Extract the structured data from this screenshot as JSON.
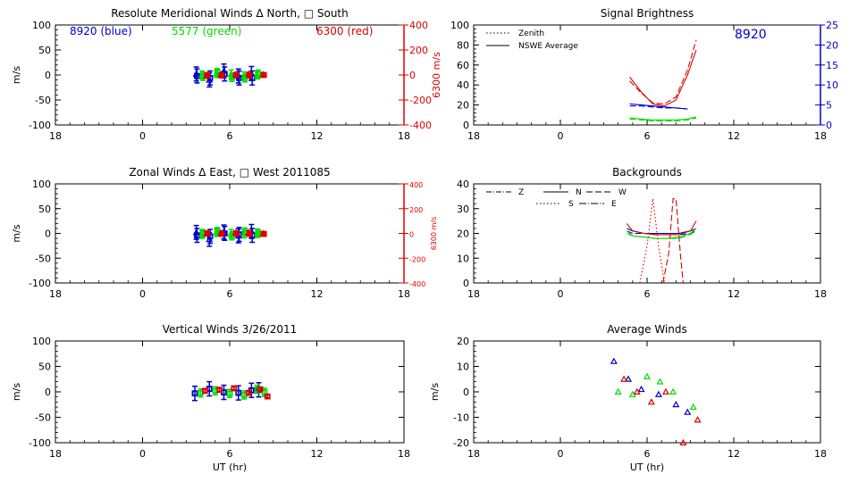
{
  "colors": {
    "blue": "#0000cc",
    "green": "#00dd00",
    "red": "#dd0000",
    "black": "#000000"
  },
  "chart_data": [
    {
      "id": "merid",
      "type": "scatter",
      "title": "Resolute Meridional Winds Δ North, □ South",
      "xlabel": "",
      "ylabel": "m/s",
      "right_axis_label": "6300 m/s",
      "xlim": [
        18,
        42
      ],
      "ylim": [
        -100,
        100
      ],
      "right_ylim": [
        -400,
        400
      ],
      "xticks": [
        18,
        24,
        30,
        36,
        42
      ],
      "xtick_labels": [
        "18",
        "0",
        "6",
        "12",
        "18"
      ],
      "yticks": [
        -100,
        -50,
        0,
        50,
        100
      ],
      "right_yticks": [
        -400,
        -200,
        0,
        200,
        400
      ],
      "annotations": [
        "8920 (blue)",
        "5577 (green)",
        "6300 (red)"
      ],
      "series": [
        {
          "color": "blue",
          "marker": "triangle",
          "error_bars": true,
          "x": [
            27.7,
            28.6,
            29.6,
            30.6,
            31.5
          ],
          "y": [
            2,
            -10,
            8,
            -2,
            3
          ]
        },
        {
          "color": "blue",
          "marker": "square",
          "error_bars": true,
          "x": [
            27.75,
            28.65,
            29.65,
            30.65,
            31.55
          ],
          "y": [
            -2,
            -6,
            2,
            -6,
            -6
          ]
        },
        {
          "color": "green",
          "marker": "triangle",
          "error_bars": true,
          "x": [
            28.1,
            29.1,
            30.1,
            31.0,
            31.9
          ],
          "y": [
            0,
            3,
            2,
            -2,
            0
          ]
        },
        {
          "color": "green",
          "marker": "square",
          "error_bars": true,
          "x": [
            28.15,
            29.15,
            30.15,
            31.05,
            31.95
          ],
          "y": [
            -3,
            5,
            -5,
            -6,
            2
          ]
        },
        {
          "color": "red",
          "marker": "triangle",
          "error_bars": true,
          "x": [
            28.4,
            29.4,
            30.4,
            31.3,
            32.3
          ],
          "y": [
            -2,
            1,
            1,
            2,
            1
          ]
        },
        {
          "color": "red",
          "marker": "square",
          "error_bars": true,
          "x": [
            28.45,
            29.45,
            30.45,
            31.35,
            32.35
          ],
          "y": [
            0,
            -1,
            0,
            -1,
            0
          ]
        }
      ]
    },
    {
      "id": "zonal",
      "type": "scatter",
      "title": "Zonal Winds Δ East, □ West 2011085",
      "xlabel": "",
      "ylabel": "m/s",
      "right_axis_label": "6300 m/s",
      "xlim": [
        18,
        42
      ],
      "ylim": [
        -100,
        100
      ],
      "right_ylim": [
        -400,
        400
      ],
      "xticks": [
        18,
        24,
        30,
        36,
        42
      ],
      "xtick_labels": [
        "18",
        "0",
        "6",
        "12",
        "18"
      ],
      "yticks": [
        -100,
        -50,
        0,
        50,
        100
      ],
      "right_yticks": [
        -400,
        -200,
        0,
        200,
        400
      ],
      "series": [
        {
          "color": "blue",
          "marker": "triangle",
          "error_bars": true,
          "x": [
            27.7,
            28.6,
            29.6,
            30.6,
            31.5
          ],
          "y": [
            2,
            -12,
            3,
            -5,
            4
          ]
        },
        {
          "color": "blue",
          "marker": "square",
          "error_bars": true,
          "x": [
            27.75,
            28.65,
            29.65,
            30.65,
            31.55
          ],
          "y": [
            -4,
            -6,
            0,
            -2,
            -4
          ]
        },
        {
          "color": "green",
          "marker": "triangle",
          "error_bars": true,
          "x": [
            28.1,
            29.1,
            30.1,
            31.0,
            31.9
          ],
          "y": [
            -2,
            2,
            0,
            -1,
            1
          ]
        },
        {
          "color": "green",
          "marker": "square",
          "error_bars": true,
          "x": [
            28.15,
            29.15,
            30.15,
            31.05,
            31.95
          ],
          "y": [
            0,
            4,
            -5,
            3,
            0
          ]
        },
        {
          "color": "red",
          "marker": "triangle",
          "error_bars": true,
          "x": [
            28.4,
            29.4,
            30.4,
            31.3,
            32.3
          ],
          "y": [
            0,
            1,
            1,
            2,
            0
          ]
        },
        {
          "color": "red",
          "marker": "square",
          "error_bars": true,
          "x": [
            28.45,
            29.45,
            30.45,
            31.35,
            32.35
          ],
          "y": [
            0,
            -1,
            0,
            -1,
            -1
          ]
        }
      ]
    },
    {
      "id": "vert",
      "type": "scatter",
      "title": "Vertical Winds 3/26/2011",
      "xlabel": "UT (hr)",
      "ylabel": "m/s",
      "xlim": [
        18,
        42
      ],
      "ylim": [
        -100,
        100
      ],
      "xticks": [
        18,
        24,
        30,
        36,
        42
      ],
      "xtick_labels": [
        "18",
        "0",
        "6",
        "12",
        "18"
      ],
      "yticks": [
        -100,
        -50,
        0,
        50,
        100
      ],
      "series": [
        {
          "color": "blue",
          "marker": "square",
          "error_bars": true,
          "x": [
            27.6,
            28.6,
            29.6,
            30.6,
            31.5,
            32.0
          ],
          "y": [
            -3,
            6,
            -1,
            -2,
            3,
            4
          ]
        },
        {
          "color": "green",
          "marker": "square",
          "error_bars": true,
          "x": [
            28.0,
            29.0,
            30.0,
            31.0,
            31.9,
            32.4
          ],
          "y": [
            -2,
            2,
            -3,
            -6,
            5,
            -1
          ]
        },
        {
          "color": "red",
          "marker": "square",
          "error_bars": true,
          "x": [
            28.3,
            29.3,
            30.3,
            31.3,
            32.1,
            32.6
          ],
          "y": [
            2,
            4,
            7,
            -2,
            5,
            -9
          ]
        }
      ]
    },
    {
      "id": "bright",
      "type": "line",
      "title": "Signal Brightness",
      "xlabel": "",
      "ylabel": "",
      "xlim": [
        18,
        42
      ],
      "ylim": [
        0,
        100
      ],
      "right_ylim": [
        0,
        25
      ],
      "xticks": [
        18,
        24,
        30,
        36,
        42
      ],
      "xtick_labels": [
        "18",
        "0",
        "6",
        "12",
        "18"
      ],
      "yticks": [
        0,
        20,
        40,
        60,
        80,
        100
      ],
      "right_yticks": [
        0,
        5,
        10,
        15,
        20,
        25
      ],
      "annotations": [
        "8920"
      ],
      "legend": [
        "Zenith",
        "NSWE Average"
      ],
      "legend_position": "top-left",
      "series": [
        {
          "color": "red",
          "style": "dashed",
          "x": [
            28.8,
            29.6,
            30.4,
            31.2,
            32.0,
            32.8,
            33.4
          ],
          "y": [
            44,
            32,
            22,
            21,
            28,
            55,
            85
          ]
        },
        {
          "color": "red",
          "style": "solid",
          "x": [
            28.8,
            29.6,
            30.4,
            31.2,
            32.0,
            32.8,
            33.4
          ],
          "y": [
            48,
            33,
            21,
            19,
            25,
            50,
            75
          ]
        },
        {
          "color": "blue",
          "style": "dashed",
          "x": [
            28.8,
            29.6,
            30.4,
            31.2,
            32.0,
            32.8
          ],
          "y": [
            19,
            19,
            18,
            17,
            17,
            16
          ]
        },
        {
          "color": "blue",
          "style": "solid",
          "x": [
            28.8,
            29.6,
            30.4,
            31.2,
            32.0,
            32.8
          ],
          "y": [
            21,
            20,
            19,
            18,
            17,
            16
          ]
        },
        {
          "color": "green",
          "style": "dashed",
          "x": [
            28.8,
            29.6,
            30.4,
            31.2,
            32.0,
            32.8,
            33.4
          ],
          "y": [
            6,
            5,
            4,
            4,
            4,
            5,
            7
          ]
        },
        {
          "color": "green",
          "style": "solid",
          "x": [
            28.8,
            29.6,
            30.4,
            31.2,
            32.0,
            32.8,
            33.4
          ],
          "y": [
            7,
            6,
            5,
            5,
            5,
            6,
            8
          ]
        }
      ]
    },
    {
      "id": "bkg",
      "type": "line",
      "title": "Backgrounds",
      "xlabel": "",
      "ylabel": "",
      "xlim": [
        18,
        42
      ],
      "ylim": [
        0,
        40
      ],
      "xticks": [
        18,
        24,
        30,
        36,
        42
      ],
      "xtick_labels": [
        "18",
        "0",
        "6",
        "12",
        "18"
      ],
      "yticks": [
        0,
        10,
        20,
        30,
        40
      ],
      "legend": [
        "Z",
        "N",
        "W",
        "S",
        "E"
      ],
      "legend_position": "top-left",
      "series": [
        {
          "color": "blue",
          "style": "solid",
          "x": [
            28.6,
            29.0,
            29.8,
            30.6,
            31.4,
            32.2,
            33.0,
            33.4
          ],
          "y": [
            22,
            21,
            20,
            20,
            20,
            20,
            21,
            22
          ]
        },
        {
          "color": "blue",
          "style": "dashed",
          "x": [
            28.6,
            29.0,
            29.8,
            30.6,
            31.4,
            32.2,
            33.0,
            33.4
          ],
          "y": [
            21,
            20,
            20,
            19.5,
            19.5,
            19.5,
            20,
            21
          ]
        },
        {
          "color": "green",
          "style": "solid",
          "x": [
            28.6,
            29.0,
            29.8,
            30.6,
            31.4,
            32.2,
            33.0,
            33.4
          ],
          "y": [
            21,
            19,
            18.5,
            18,
            18,
            18.5,
            20,
            22
          ]
        },
        {
          "color": "green",
          "style": "dashed",
          "x": [
            28.6,
            29.0,
            29.8,
            30.6,
            31.4,
            32.2,
            33.0,
            33.4
          ],
          "y": [
            20,
            19,
            18.5,
            18,
            18,
            18,
            19.5,
            21
          ]
        },
        {
          "color": "red",
          "style": "solid",
          "x": [
            28.6,
            29.0,
            29.8,
            30.6,
            31.4,
            32.2,
            33.0,
            33.4
          ],
          "y": [
            24,
            21,
            20,
            19.5,
            19.5,
            19.5,
            21,
            25
          ]
        },
        {
          "color": "red",
          "style": "dotted",
          "x": [
            29.5,
            30.0,
            30.4,
            30.8,
            31.2
          ],
          "y": [
            0,
            15,
            34,
            15,
            0
          ]
        },
        {
          "color": "red",
          "style": "dashed",
          "x": [
            31.1,
            31.5,
            31.8,
            32.0,
            32.3,
            32.5
          ],
          "y": [
            0,
            12,
            34,
            34,
            12,
            0
          ]
        }
      ]
    },
    {
      "id": "avg",
      "type": "scatter",
      "title": "Average Winds",
      "xlabel": "UT (hr)",
      "ylabel": "m/s",
      "xlim": [
        18,
        42
      ],
      "ylim": [
        -20,
        20
      ],
      "xticks": [
        18,
        24,
        30,
        36,
        42
      ],
      "xtick_labels": [
        "18",
        "0",
        "6",
        "12",
        "18"
      ],
      "yticks": [
        -20,
        -10,
        0,
        10,
        20
      ],
      "series": [
        {
          "color": "blue",
          "marker": "triangle",
          "x": [
            27.7,
            28.7,
            29.6,
            30.8,
            32.0,
            32.8
          ],
          "y": [
            12,
            5,
            1,
            -1,
            -5,
            -8
          ]
        },
        {
          "color": "green",
          "marker": "triangle",
          "x": [
            28.0,
            29.0,
            30.0,
            30.9,
            31.8,
            33.2
          ],
          "y": [
            0,
            -1,
            6,
            4,
            0,
            -6
          ]
        },
        {
          "color": "red",
          "marker": "triangle",
          "x": [
            28.4,
            29.3,
            30.3,
            31.3,
            32.5,
            33.5
          ],
          "y": [
            5,
            0,
            -4,
            0,
            -20,
            -11
          ]
        }
      ]
    }
  ]
}
